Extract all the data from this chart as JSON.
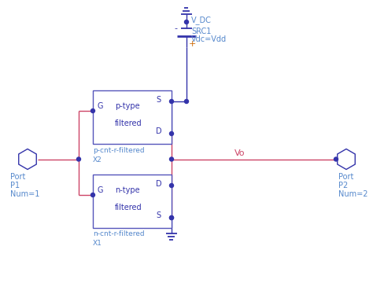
{
  "bg_color": "#ffffff",
  "blue": "#3333aa",
  "light_blue": "#5588cc",
  "red": "#cc4466",
  "orange": "#cc6600",
  "purple_box": "#5555bb",
  "dot_color": "#3333aa",
  "fig_width": 4.74,
  "fig_height": 3.74,
  "dpi": 100,
  "vdd_label": "V_DC",
  "src_label": "SRC1",
  "vdc_label": "Vdc=Vdd",
  "ptype_line1": "p-type",
  "ptype_line2": "filtered",
  "ptype_name": "p-cnt-r-filtered",
  "ptype_num": "X2",
  "ntype_line1": "n-type",
  "ntype_line2": "filtered",
  "ntype_name": "n-cnt-r-filtered",
  "ntype_num": "X1",
  "port1_line1": "Port",
  "port1_line2": "P1",
  "port1_line3": "Num=1",
  "port2_line1": "Port",
  "port2_line2": "P2",
  "port2_line3": "Num=2",
  "vo_label": "Vo",
  "plus_label": "+"
}
